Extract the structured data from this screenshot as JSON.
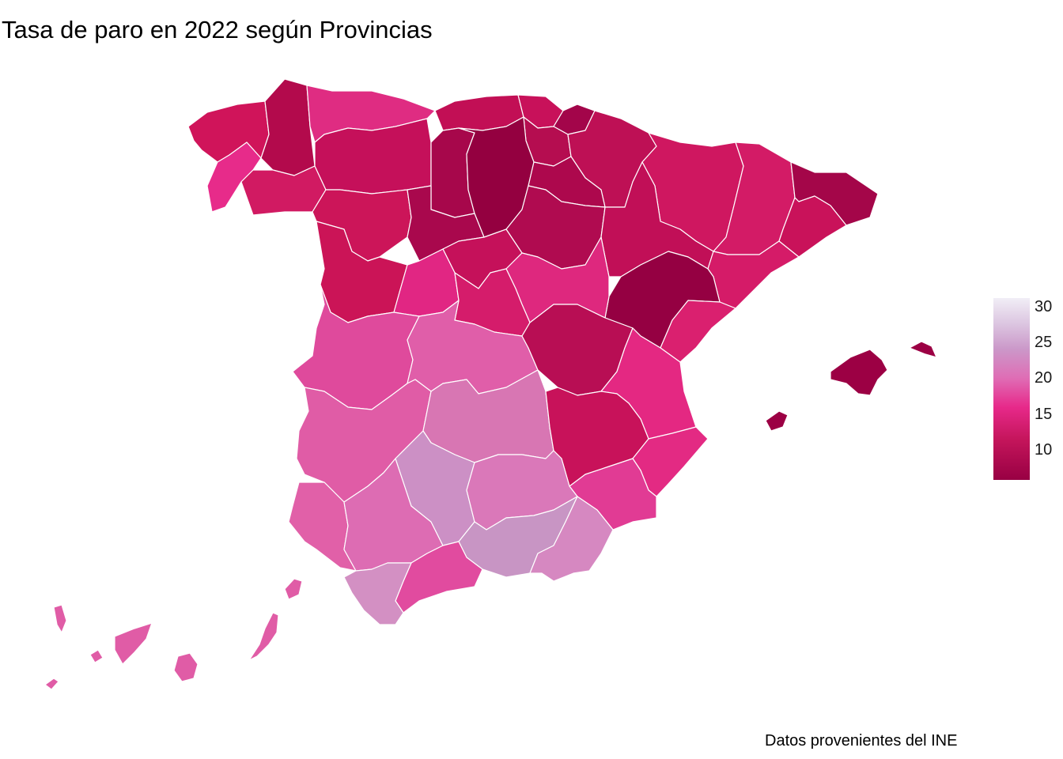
{
  "title": "Tasa de paro en 2022 según Provincias",
  "caption": "Datos provenientes del INE",
  "legend": {
    "ticks": [
      "30",
      "25",
      "20",
      "15",
      "10"
    ],
    "colors": [
      "#f1eef6",
      "#cb98c9",
      "#df6db5",
      "#e7298a",
      "#980043"
    ]
  }
}
